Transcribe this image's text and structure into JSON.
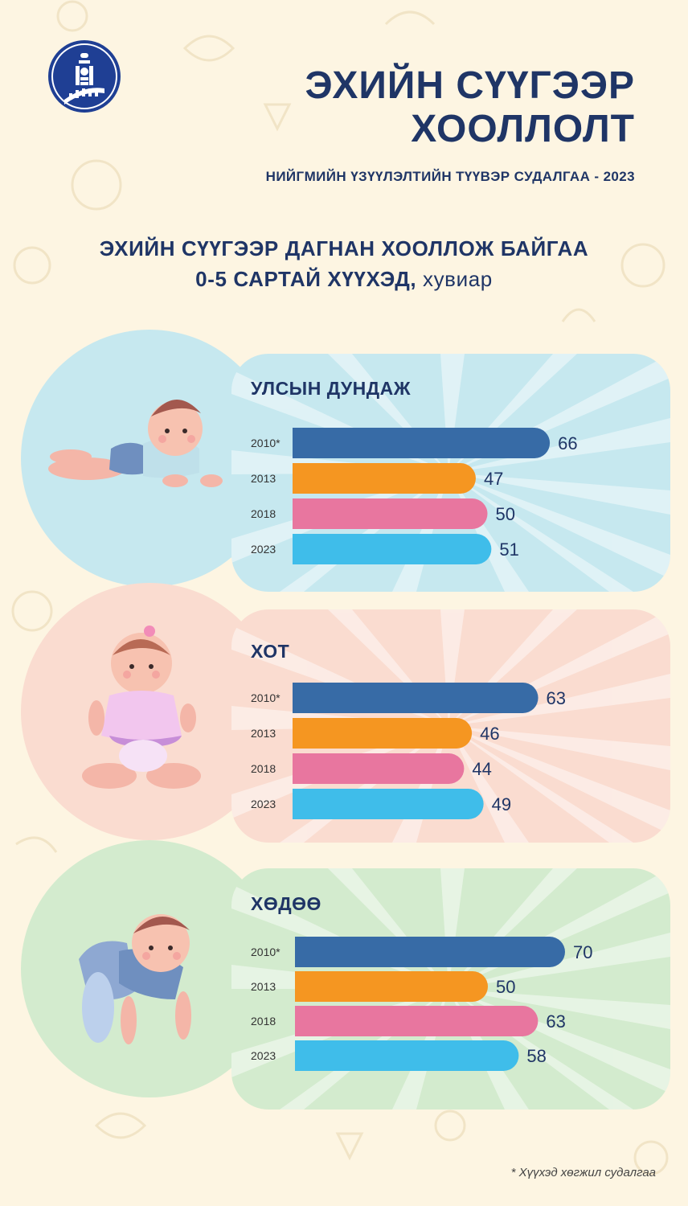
{
  "header": {
    "title_line1": "ЭХИЙН СҮҮГЭЭР",
    "title_line2": "ХООЛЛОЛТ",
    "subtitle": "НИЙГМИЙН ҮЗҮҮЛЭЛТИЙН ТҮҮВЭР СУДАЛГАА - 2023",
    "chart_heading_line1": "ЭХИЙН СҮҮГЭЭР ДАГНАН ХООЛЛОЖ БАЙГАА",
    "chart_heading_line2": "0-5 САРТАЙ ХҮҮХЭД,",
    "chart_heading_unit": " хувиар"
  },
  "colors": {
    "background": "#fdf5e2",
    "title": "#1f3566",
    "bar_2010": "#376ba6",
    "bar_2013": "#f59621",
    "bar_2018": "#e8769f",
    "bar_2023": "#3fbdea",
    "panel_national": "#c6e8ef",
    "panel_urban": "#fadcd0",
    "panel_rural": "#d3ebce"
  },
  "footnote": "* Хүүхэд хөгжил судалгаа",
  "chart_data": [
    {
      "type": "bar",
      "orientation": "horizontal",
      "title": "УЛСЫН ДУНДАЖ",
      "categories": [
        "2010*",
        "2013",
        "2018",
        "2023"
      ],
      "values": [
        66,
        47,
        50,
        51
      ]
    },
    {
      "type": "bar",
      "orientation": "horizontal",
      "title": "ХОТ",
      "categories": [
        "2010*",
        "2013",
        "2018",
        "2023"
      ],
      "values": [
        63,
        46,
        44,
        49
      ]
    },
    {
      "type": "bar",
      "orientation": "horizontal",
      "title": "ХӨДӨӨ",
      "categories": [
        "2010*",
        "2013",
        "2018",
        "2023"
      ],
      "values": [
        70,
        50,
        63,
        58
      ]
    }
  ]
}
